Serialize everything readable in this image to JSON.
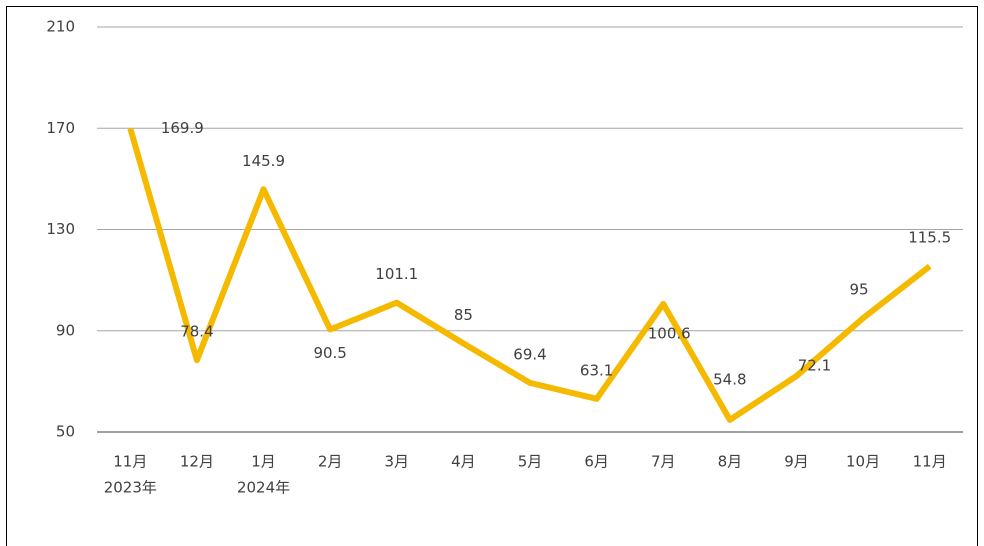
{
  "chart_data": {
    "type": "line",
    "categories": [
      "11月",
      "12月",
      "1月",
      "2月",
      "3月",
      "4月",
      "5月",
      "6月",
      "7月",
      "8月",
      "9月",
      "10月",
      "11月"
    ],
    "category_years": [
      "2023年",
      null,
      "2024年",
      null,
      null,
      null,
      null,
      null,
      null,
      null,
      null,
      null,
      null
    ],
    "values": [
      169.9,
      78.4,
      145.9,
      90.5,
      101.1,
      85,
      69.4,
      63.1,
      100.6,
      54.8,
      72.1,
      95,
      115.5
    ],
    "color": "#f5b900",
    "ylim": [
      50,
      210
    ],
    "yticks": [
      50,
      90,
      130,
      170,
      210
    ],
    "grid": true
  }
}
